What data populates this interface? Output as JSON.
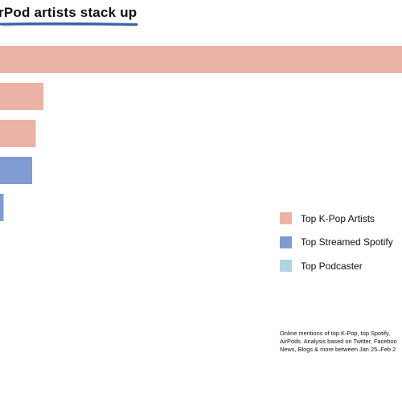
{
  "header": {
    "title": "rPod artists stack up"
  },
  "chart_data": {
    "type": "bar",
    "orientation": "horizontal",
    "categories": [
      "",
      "",
      "",
      "",
      ""
    ],
    "values": [
      100,
      10.8,
      8.9,
      8.0,
      0.9
    ],
    "bar_groups": [
      "Top K-Pop Artists",
      "Top K-Pop Artists",
      "Top K-Pop Artists",
      "Top Streamed Spotify",
      "Top Streamed Spotify"
    ],
    "xlim": [
      0,
      100
    ],
    "grid": false,
    "legend_position": "right",
    "legend": [
      {
        "label": "Top K-Pop Artists",
        "color": "#ebb2a6"
      },
      {
        "label": "Top Streamed Spotify",
        "color": "#7f9bd1"
      },
      {
        "label": "Top Podcaster",
        "color": "#aed5e0"
      }
    ]
  },
  "footnote": {
    "lines": [
      "Online mentions of top K-Pop, top Spotify,",
      "AirPods. Analysis based on Twitter, Faceboo",
      "News, Blogs & more between Jan 25–Feb 2"
    ]
  },
  "colors": {
    "underline": "#3f5fa6"
  }
}
